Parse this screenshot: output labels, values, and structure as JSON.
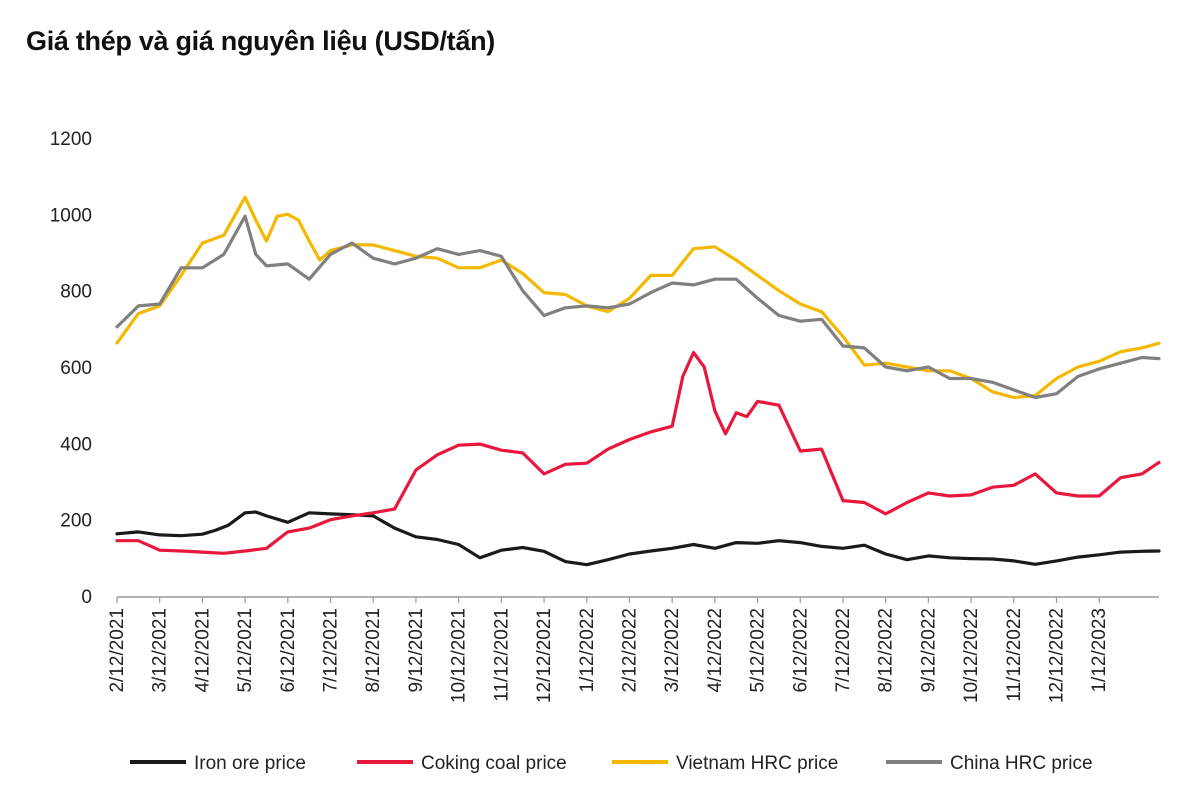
{
  "chart_data": {
    "type": "line",
    "title": "Giá thép và giá nguyên liệu (USD/tấn)",
    "xlabel": "",
    "ylabel": "",
    "ylim": [
      0,
      1200
    ],
    "yticks": [
      "0",
      "200",
      "400",
      "600",
      "800",
      "1000",
      "1200"
    ],
    "grid": false,
    "legend_position": "bottom",
    "x_tick_labels": [
      "2/12/2021",
      "3/12/2021",
      "4/12/2021",
      "5/12/2021",
      "6/12/2021",
      "7/12/2021",
      "8/12/2021",
      "9/12/2021",
      "10/12/2021",
      "11/12/2021",
      "12/12/2021",
      "1/12/2022",
      "2/12/2022",
      "3/12/2022",
      "4/12/2022",
      "5/12/2022",
      "6/12/2022",
      "7/12/2022",
      "8/12/2022",
      "9/12/2022",
      "10/12/2022",
      "11/12/2022",
      "12/12/2022",
      "1/12/2023"
    ],
    "x_range": [
      0,
      24.4
    ],
    "series": [
      {
        "name": "Iron ore price",
        "color": "#1a1a1a",
        "x": [
          0,
          0.5,
          1,
          1.5,
          2,
          2.3,
          2.6,
          3,
          3.25,
          3.5,
          4,
          4.5,
          5,
          5.5,
          6,
          6.5,
          7,
          7.5,
          8,
          8.5,
          9,
          9.5,
          10,
          10.5,
          11,
          11.5,
          12,
          12.5,
          13,
          13.5,
          14,
          14.5,
          15,
          15.5,
          16,
          16.5,
          17,
          17.5,
          18,
          18.5,
          19,
          19.5,
          20,
          20.5,
          21,
          21.5,
          22,
          22.5,
          23,
          23.5,
          24,
          24.4
        ],
        "values": [
          163,
          168,
          160,
          158,
          162,
          172,
          185,
          218,
          220,
          210,
          193,
          218,
          215,
          213,
          210,
          178,
          155,
          148,
          135,
          100,
          120,
          127,
          117,
          90,
          82,
          95,
          110,
          118,
          125,
          135,
          125,
          140,
          138,
          145,
          140,
          130,
          125,
          133,
          110,
          95,
          105,
          100,
          98,
          97,
          92,
          83,
          92,
          102,
          108,
          115,
          117,
          118
        ]
      },
      {
        "name": "Coking coal price",
        "color": "#e8173d",
        "x": [
          0,
          0.5,
          1,
          1.5,
          2,
          2.5,
          3,
          3.5,
          4,
          4.5,
          5,
          5.5,
          6,
          6.5,
          7,
          7.5,
          8,
          8.5,
          9,
          9.5,
          10,
          10.5,
          11,
          11.5,
          12,
          12.5,
          13,
          13.25,
          13.5,
          13.75,
          14,
          14.25,
          14.5,
          14.75,
          15,
          15.5,
          16,
          16.5,
          17,
          17.5,
          18,
          18.5,
          19,
          19.5,
          20,
          20.5,
          21,
          21.5,
          22,
          22.5,
          23,
          23.5,
          24,
          24.4
        ],
        "values": [
          145,
          145,
          120,
          118,
          115,
          112,
          118,
          125,
          168,
          178,
          200,
          210,
          218,
          228,
          330,
          370,
          395,
          398,
          382,
          375,
          320,
          345,
          348,
          385,
          410,
          430,
          445,
          575,
          638,
          600,
          485,
          425,
          480,
          470,
          510,
          500,
          380,
          385,
          250,
          245,
          215,
          245,
          270,
          262,
          265,
          285,
          290,
          320,
          270,
          262,
          262,
          310,
          320,
          350
        ]
      },
      {
        "name": "Vietnam HRC price",
        "color": "#f5b800",
        "x": [
          0,
          0.5,
          1,
          1.5,
          2,
          2.5,
          3,
          3.25,
          3.5,
          3.75,
          4,
          4.25,
          4.5,
          4.75,
          5,
          5.5,
          6,
          6.5,
          7,
          7.5,
          8,
          8.5,
          9,
          9.5,
          10,
          10.5,
          11,
          11.5,
          12,
          12.5,
          13,
          13.5,
          14,
          14.5,
          15,
          15.5,
          16,
          16.5,
          17,
          17.5,
          18,
          18.5,
          19,
          19.5,
          20,
          20.5,
          21,
          21.5,
          22,
          22.5,
          23,
          23.5,
          24,
          24.4
        ],
        "values": [
          663,
          740,
          760,
          840,
          925,
          945,
          1045,
          985,
          930,
          995,
          1000,
          985,
          930,
          880,
          905,
          920,
          920,
          905,
          890,
          885,
          860,
          860,
          880,
          845,
          795,
          790,
          760,
          745,
          780,
          840,
          840,
          910,
          915,
          880,
          840,
          800,
          765,
          745,
          680,
          605,
          610,
          600,
          590,
          590,
          570,
          535,
          520,
          525,
          570,
          600,
          615,
          640,
          650,
          662
        ]
      },
      {
        "name": "China HRC price",
        "color": "#808080",
        "x": [
          0,
          0.5,
          1,
          1.5,
          2,
          2.5,
          3,
          3.25,
          3.5,
          4,
          4.5,
          5,
          5.5,
          6,
          6.5,
          7,
          7.5,
          8,
          8.5,
          9,
          9.5,
          10,
          10.5,
          11,
          11.5,
          12,
          12.5,
          13,
          13.5,
          14,
          14.5,
          15,
          15.5,
          16,
          16.5,
          17,
          17.5,
          18,
          18.5,
          19,
          19.5,
          20,
          20.5,
          21,
          21.5,
          22,
          22.5,
          23,
          23.5,
          24,
          24.4
        ],
        "values": [
          705,
          760,
          765,
          860,
          860,
          895,
          995,
          895,
          865,
          870,
          830,
          895,
          925,
          885,
          870,
          885,
          910,
          895,
          905,
          890,
          800,
          735,
          755,
          760,
          755,
          765,
          795,
          820,
          815,
          830,
          830,
          780,
          735,
          720,
          725,
          655,
          650,
          600,
          590,
          600,
          570,
          570,
          560,
          540,
          520,
          530,
          575,
          595,
          610,
          625,
          622
        ]
      }
    ]
  }
}
